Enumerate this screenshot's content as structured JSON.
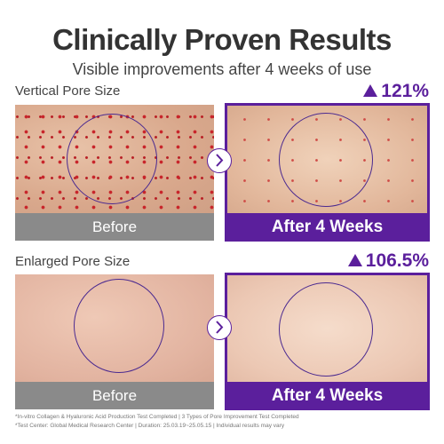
{
  "header": {
    "title": "Clinically Proven Results",
    "subtitle": "Visible improvements after 4 weeks of use"
  },
  "sections": [
    {
      "label": "Vertical Pore Size",
      "stat": "121%",
      "before": "Before",
      "after": "After 4 Weeks"
    },
    {
      "label": "Enlarged  Pore Size",
      "stat": "106.5%",
      "before": "Before",
      "after": "After 4 Weeks"
    }
  ],
  "footnotes": [
    "*In-vitro Collagen & Hyaluronic Acid Production Test Completed | 3 Types of Pore Improvement Test Completed",
    "*Test Center: Global Medical Research Center  |  Duration: 25.03.19~25.05.15 | Individual results may vary"
  ]
}
